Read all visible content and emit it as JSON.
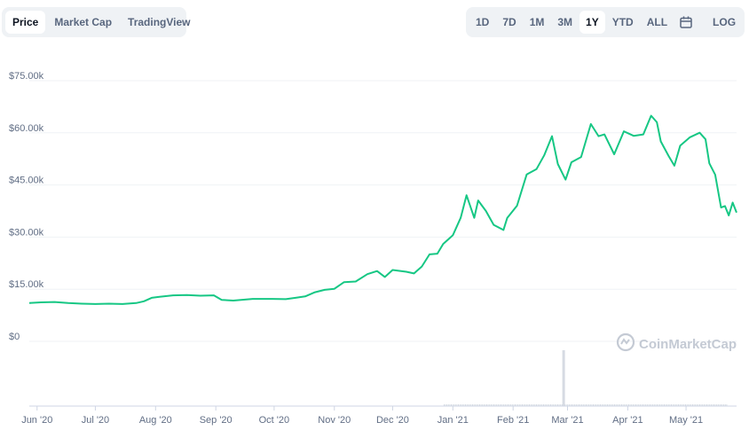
{
  "tabs": [
    {
      "label": "Price",
      "active": true
    },
    {
      "label": "Market Cap",
      "active": false
    },
    {
      "label": "TradingView",
      "active": false
    }
  ],
  "ranges": [
    {
      "label": "1D",
      "active": false
    },
    {
      "label": "7D",
      "active": false
    },
    {
      "label": "1M",
      "active": false
    },
    {
      "label": "3M",
      "active": false
    },
    {
      "label": "1Y",
      "active": true
    },
    {
      "label": "YTD",
      "active": false
    },
    {
      "label": "ALL",
      "active": false
    }
  ],
  "calendar_icon": "calendar-icon",
  "log_label": "LOG",
  "watermark": "CoinMarketCap",
  "colors": {
    "line": "#16c784",
    "grid": "#eff2f5",
    "volume": "#d6dbe3",
    "text": "#616e85"
  },
  "chart_data": {
    "type": "line",
    "title": "",
    "xlabel": "",
    "ylabel": "",
    "ylim": [
      0,
      80000
    ],
    "y_ticks": [
      0,
      15000,
      30000,
      45000,
      60000,
      75000
    ],
    "y_tick_labels": [
      "$0",
      "$15.00k",
      "$30.00k",
      "$45.00k",
      "$60.00k",
      "$75.00k"
    ],
    "x_tick_labels": [
      "Jun '20",
      "Jul '20",
      "Aug '20",
      "Sep '20",
      "Oct '20",
      "Nov '20",
      "Dec '20",
      "Jan '21",
      "Feb '21",
      "Mar '21",
      "Apr '21",
      "May '21"
    ],
    "x_tick_dates": [
      "2020-06-01",
      "2020-07-01",
      "2020-08-01",
      "2020-09-01",
      "2020-10-01",
      "2020-11-01",
      "2020-12-01",
      "2021-01-01",
      "2021-02-01",
      "2021-03-01",
      "2021-04-01",
      "2021-05-01"
    ],
    "xlim": [
      "2020-05-28",
      "2021-05-27"
    ],
    "series": [
      {
        "values": [
          [
            "2020-05-28",
            9500
          ],
          [
            "2020-06-03",
            9700
          ],
          [
            "2020-06-10",
            9800
          ],
          [
            "2020-06-17",
            9500
          ],
          [
            "2020-06-24",
            9300
          ],
          [
            "2020-07-01",
            9200
          ],
          [
            "2020-07-08",
            9300
          ],
          [
            "2020-07-15",
            9200
          ],
          [
            "2020-07-22",
            9500
          ],
          [
            "2020-07-26",
            10000
          ],
          [
            "2020-07-30",
            11000
          ],
          [
            "2020-08-03",
            11300
          ],
          [
            "2020-08-10",
            11700
          ],
          [
            "2020-08-17",
            11800
          ],
          [
            "2020-08-24",
            11600
          ],
          [
            "2020-08-31",
            11700
          ],
          [
            "2020-09-04",
            10400
          ],
          [
            "2020-09-10",
            10200
          ],
          [
            "2020-09-20",
            10700
          ],
          [
            "2020-09-30",
            10700
          ],
          [
            "2020-10-07",
            10600
          ],
          [
            "2020-10-12",
            11000
          ],
          [
            "2020-10-17",
            11400
          ],
          [
            "2020-10-22",
            12600
          ],
          [
            "2020-10-27",
            13300
          ],
          [
            "2020-11-01",
            13600
          ],
          [
            "2020-11-06",
            15500
          ],
          [
            "2020-11-12",
            15700
          ],
          [
            "2020-11-18",
            17800
          ],
          [
            "2020-11-23",
            18700
          ],
          [
            "2020-11-27",
            17000
          ],
          [
            "2020-12-01",
            19000
          ],
          [
            "2020-12-08",
            18500
          ],
          [
            "2020-12-12",
            18000
          ],
          [
            "2020-12-16",
            20000
          ],
          [
            "2020-12-20",
            23500
          ],
          [
            "2020-12-24",
            23700
          ],
          [
            "2020-12-27",
            26500
          ],
          [
            "2021-01-01",
            29000
          ],
          [
            "2021-01-05",
            34000
          ],
          [
            "2021-01-08",
            40500
          ],
          [
            "2021-01-12",
            34000
          ],
          [
            "2021-01-14",
            39000
          ],
          [
            "2021-01-18",
            36000
          ],
          [
            "2021-01-22",
            32000
          ],
          [
            "2021-01-27",
            30500
          ],
          [
            "2021-01-29",
            34000
          ],
          [
            "2021-02-03",
            37500
          ],
          [
            "2021-02-08",
            46500
          ],
          [
            "2021-02-13",
            48000
          ],
          [
            "2021-02-17",
            52000
          ],
          [
            "2021-02-21",
            57500
          ],
          [
            "2021-02-24",
            49500
          ],
          [
            "2021-02-28",
            45000
          ],
          [
            "2021-03-03",
            50000
          ],
          [
            "2021-03-08",
            51500
          ],
          [
            "2021-03-13",
            61000
          ],
          [
            "2021-03-17",
            57500
          ],
          [
            "2021-03-20",
            58000
          ],
          [
            "2021-03-25",
            52300
          ],
          [
            "2021-03-30",
            58900
          ],
          [
            "2021-04-04",
            57600
          ],
          [
            "2021-04-09",
            58000
          ],
          [
            "2021-04-13",
            63400
          ],
          [
            "2021-04-16",
            61500
          ],
          [
            "2021-04-18",
            56000
          ],
          [
            "2021-04-22",
            51800
          ],
          [
            "2021-04-25",
            49000
          ],
          [
            "2021-04-28",
            54800
          ],
          [
            "2021-05-03",
            57200
          ],
          [
            "2021-05-08",
            58500
          ],
          [
            "2021-05-11",
            56600
          ],
          [
            "2021-05-13",
            49700
          ],
          [
            "2021-05-16",
            46400
          ],
          [
            "2021-05-19",
            37000
          ],
          [
            "2021-05-21",
            37400
          ],
          [
            "2021-05-23",
            34700
          ],
          [
            "2021-05-25",
            38400
          ],
          [
            "2021-05-27",
            35500
          ]
        ]
      }
    ],
    "volume_note": "relative bar heights (0-1)",
    "volume": [
      [
        "2021-02-27",
        1.0
      ]
    ]
  }
}
